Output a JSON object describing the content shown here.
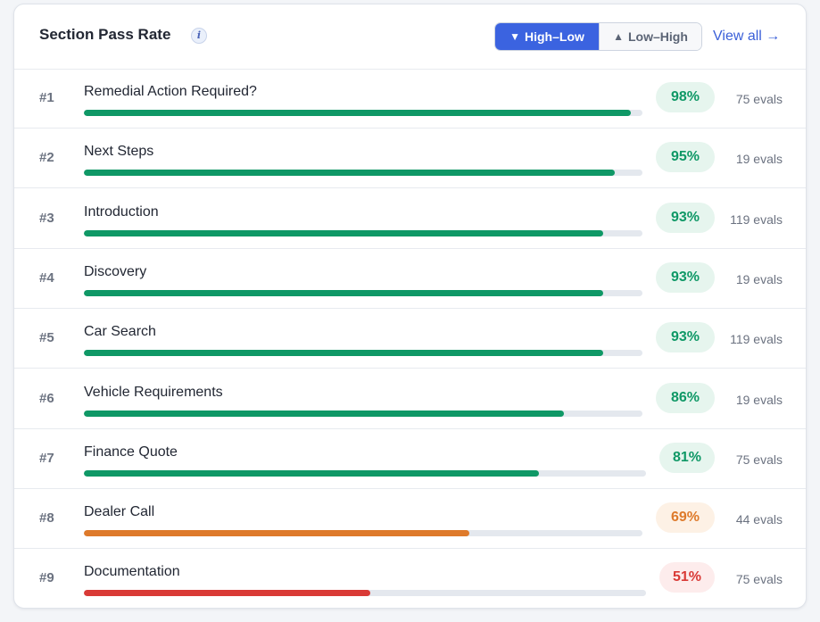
{
  "header": {
    "title": "Section Pass Rate",
    "info_glyph": "i",
    "sort": {
      "high_low_label": "High–Low",
      "low_high_label": "Low–High",
      "high_low_glyph": "▼",
      "low_high_glyph": "▲",
      "selected": "High–Low"
    },
    "view_all_label": "View all →"
  },
  "colors": {
    "green": "#0f9866",
    "green_bg": "#e6f5ee",
    "orange": "#de7a2b",
    "orange_bg": "#fdf1e5",
    "red": "#d93a36",
    "red_bg": "#fdecec",
    "accent": "#3b63e0"
  },
  "sections": [
    {
      "rank": "#1",
      "name": "Remedial Action Required?",
      "rate": 98,
      "rate_label": "98%",
      "evals": "75 evals",
      "status": "green"
    },
    {
      "rank": "#2",
      "name": "Next Steps",
      "rate": 95,
      "rate_label": "95%",
      "evals": "19 evals",
      "status": "green"
    },
    {
      "rank": "#3",
      "name": "Introduction",
      "rate": 93,
      "rate_label": "93%",
      "evals": "119 evals",
      "status": "green"
    },
    {
      "rank": "#4",
      "name": "Discovery",
      "rate": 93,
      "rate_label": "93%",
      "evals": "19 evals",
      "status": "green"
    },
    {
      "rank": "#5",
      "name": "Car Search",
      "rate": 93,
      "rate_label": "93%",
      "evals": "119 evals",
      "status": "green"
    },
    {
      "rank": "#6",
      "name": "Vehicle Requirements",
      "rate": 86,
      "rate_label": "86%",
      "evals": "19 evals",
      "status": "green"
    },
    {
      "rank": "#7",
      "name": "Finance Quote",
      "rate": 81,
      "rate_label": "81%",
      "evals": "75 evals",
      "status": "green"
    },
    {
      "rank": "#8",
      "name": "Dealer Call",
      "rate": 69,
      "rate_label": "69%",
      "evals": "44 evals",
      "status": "orange"
    },
    {
      "rank": "#9",
      "name": "Documentation",
      "rate": 51,
      "rate_label": "51%",
      "evals": "75 evals",
      "status": "red"
    }
  ]
}
